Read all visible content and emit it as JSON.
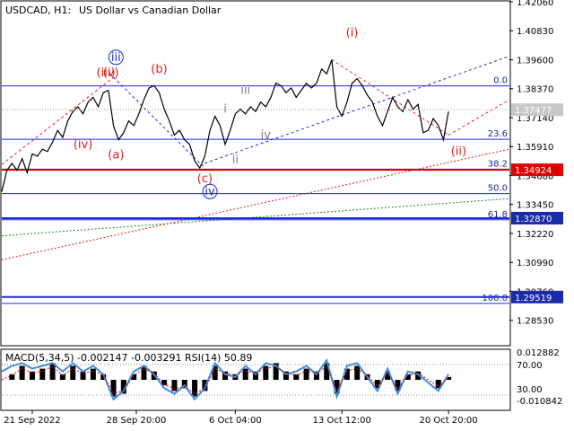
{
  "header": {
    "symbol": "USDCAD, H1:",
    "description": "US Dollar vs Canadian Dollar"
  },
  "macd_header": "MACD(5,34,5) -0.002147 -0.003291 RSI(14) 50.89",
  "colors": {
    "price_line": "#000000",
    "fib_line": "#1a2ad8",
    "key_level": "#e00000",
    "price_tag": "#1a2aa8",
    "wave_red": "#d8221b",
    "wave_gray": "#7d7d7d",
    "wave_blue": "#1a2ad8",
    "macd_hist": "#000000",
    "macd_signal": "#e00000",
    "rsi_line": "#3d8fe0",
    "trend_green": "#1a8a1a",
    "trend_red": "#d8221b",
    "trend_blue": "#1a2ad8"
  },
  "chart_data": {
    "type": "line",
    "ylim": [
      1.2749,
      1.4206
    ],
    "xlim": [
      0,
      100
    ],
    "y_ticks": [
      "1.42060",
      "1.40830",
      "1.39600",
      "1.38370",
      "1.37140",
      "1.35910",
      "1.34680",
      "1.33450",
      "1.32220",
      "1.30990",
      "1.29760",
      "1.28530"
    ],
    "x_ticks": [
      {
        "label": "21 Sep 2022",
        "x": 6
      },
      {
        "label": "28 Sep 20:00",
        "x": 26.5
      },
      {
        "label": "6 Oct 04:00",
        "x": 46
      },
      {
        "label": "13 Oct 12:00",
        "x": 67
      },
      {
        "label": "20 Oct 20:00",
        "x": 88
      }
    ],
    "fib_levels": [
      {
        "label": "0.0",
        "price": 1.3849
      },
      {
        "label": "23.6",
        "price": 1.3622
      },
      {
        "label": "38.2",
        "price": 1.3495
      },
      {
        "label": "50.0",
        "price": 1.3391
      },
      {
        "label": "61.8",
        "price": 1.328
      },
      {
        "label": "100.0",
        "price": 1.2925
      }
    ],
    "key_levels": [
      {
        "label": "1.34924",
        "price": 1.34924
      },
      {
        "label": "1.32870",
        "price": 1.3287
      },
      {
        "label": "1.29519",
        "price": 1.29519
      }
    ],
    "current_price": {
      "label": "1.37477",
      "price": 1.37477
    },
    "price_series": [
      [
        0,
        1.34
      ],
      [
        1,
        1.349
      ],
      [
        2,
        1.352
      ],
      [
        3,
        1.349
      ],
      [
        4,
        1.354
      ],
      [
        5,
        1.348
      ],
      [
        6,
        1.356
      ],
      [
        7,
        1.355
      ],
      [
        8,
        1.358
      ],
      [
        9,
        1.357
      ],
      [
        10,
        1.361
      ],
      [
        11,
        1.366
      ],
      [
        12,
        1.363
      ],
      [
        13,
        1.37
      ],
      [
        14,
        1.374
      ],
      [
        15,
        1.376
      ],
      [
        16,
        1.373
      ],
      [
        17,
        1.378
      ],
      [
        18,
        1.38
      ],
      [
        19,
        1.376
      ],
      [
        20,
        1.382
      ],
      [
        21,
        1.383
      ],
      [
        22,
        1.368
      ],
      [
        23,
        1.362
      ],
      [
        24,
        1.365
      ],
      [
        25,
        1.37
      ],
      [
        26,
        1.368
      ],
      [
        27,
        1.373
      ],
      [
        28,
        1.379
      ],
      [
        29,
        1.384
      ],
      [
        30,
        1.385
      ],
      [
        31,
        1.382
      ],
      [
        32,
        1.375
      ],
      [
        33,
        1.37
      ],
      [
        34,
        1.364
      ],
      [
        35,
        1.366
      ],
      [
        36,
        1.362
      ],
      [
        37,
        1.36
      ],
      [
        38,
        1.353
      ],
      [
        39,
        1.35
      ],
      [
        40,
        1.355
      ],
      [
        41,
        1.366
      ],
      [
        42,
        1.372
      ],
      [
        43,
        1.368
      ],
      [
        44,
        1.36
      ],
      [
        45,
        1.366
      ],
      [
        46,
        1.373
      ],
      [
        47,
        1.375
      ],
      [
        48,
        1.373
      ],
      [
        49,
        1.376
      ],
      [
        50,
        1.374
      ],
      [
        51,
        1.378
      ],
      [
        52,
        1.376
      ],
      [
        53,
        1.38
      ],
      [
        54,
        1.386
      ],
      [
        55,
        1.385
      ],
      [
        56,
        1.382
      ],
      [
        57,
        1.384
      ],
      [
        58,
        1.38
      ],
      [
        59,
        1.383
      ],
      [
        60,
        1.386
      ],
      [
        61,
        1.384
      ],
      [
        62,
        1.386
      ],
      [
        63,
        1.392
      ],
      [
        64,
        1.39
      ],
      [
        65,
        1.396
      ],
      [
        66,
        1.376
      ],
      [
        67,
        1.372
      ],
      [
        68,
        1.378
      ],
      [
        69,
        1.386
      ],
      [
        70,
        1.388
      ],
      [
        71,
        1.385
      ],
      [
        72,
        1.381
      ],
      [
        73,
        1.378
      ],
      [
        74,
        1.372
      ],
      [
        75,
        1.368
      ],
      [
        76,
        1.374
      ],
      [
        77,
        1.38
      ],
      [
        78,
        1.376
      ],
      [
        79,
        1.374
      ],
      [
        80,
        1.379
      ],
      [
        81,
        1.375
      ],
      [
        82,
        1.377
      ],
      [
        83,
        1.365
      ],
      [
        84,
        1.366
      ],
      [
        85,
        1.371
      ],
      [
        86,
        1.368
      ],
      [
        87,
        1.362
      ],
      [
        88,
        1.374
      ]
    ],
    "wave_labels": [
      {
        "text": "(iii)",
        "x": 20.5,
        "y": 1.389,
        "style": "red"
      },
      {
        "text": "(v)",
        "x": 21.5,
        "y": 1.389,
        "style": "red"
      },
      {
        "text": "iii",
        "x": 22.5,
        "y": 1.3955,
        "style": "blue-circle"
      },
      {
        "text": "(b)",
        "x": 31,
        "y": 1.3905,
        "style": "red"
      },
      {
        "text": "(iv)",
        "x": 16,
        "y": 1.3585,
        "style": "red"
      },
      {
        "text": "(a)",
        "x": 22.5,
        "y": 1.354,
        "style": "red"
      },
      {
        "text": "(c)",
        "x": 40,
        "y": 1.344,
        "style": "red"
      },
      {
        "text": "iv",
        "x": 41,
        "y": 1.3385,
        "style": "blue-circle"
      },
      {
        "text": "i",
        "x": 44,
        "y": 1.3735,
        "style": "gray"
      },
      {
        "text": "ii",
        "x": 46,
        "y": 1.352,
        "style": "gray"
      },
      {
        "text": "iii",
        "x": 48,
        "y": 1.3815,
        "style": "gray"
      },
      {
        "text": "iv",
        "x": 52,
        "y": 1.3625,
        "style": "gray"
      },
      {
        "text": "(i)",
        "x": 69,
        "y": 1.406,
        "style": "red"
      },
      {
        "text": "(ii)",
        "x": 90,
        "y": 1.3555,
        "style": "red"
      }
    ],
    "trend_lines": [
      {
        "color": "trend_green",
        "dash": "2,2",
        "from": [
          0,
          1.3212
        ],
        "to": [
          100,
          1.337
        ]
      },
      {
        "color": "trend_red",
        "dash": "2,2",
        "from": [
          0,
          1.311
        ],
        "to": [
          100,
          1.358
        ]
      },
      {
        "color": "trend_blue",
        "dash": "3,3",
        "from": [
          40,
          1.352
        ],
        "to": [
          100,
          1.3975
        ]
      },
      {
        "color": "trend_red",
        "dash": "3,3",
        "from": [
          0,
          1.3515
        ],
        "to": [
          22,
          1.3885
        ]
      },
      {
        "color": "trend_blue",
        "dash": "3,3",
        "from": [
          22,
          1.3885
        ],
        "to": [
          40,
          1.35
        ]
      },
      {
        "color": "trend_red",
        "dash": "3,3",
        "from": [
          65,
          1.396
        ],
        "to": [
          88,
          1.364
        ]
      },
      {
        "color": "trend_red",
        "dash": "3,3",
        "from": [
          88,
          1.364
        ],
        "to": [
          100,
          1.379
        ]
      }
    ],
    "macd_ticks": [
      "0.012882",
      "70.00",
      "30.00",
      "-0.010842"
    ],
    "macd_series": [
      [
        0,
        0.0
      ],
      [
        2,
        0.2
      ],
      [
        4,
        0.5
      ],
      [
        6,
        0.3
      ],
      [
        8,
        0.4
      ],
      [
        10,
        0.6
      ],
      [
        12,
        0.2
      ],
      [
        14,
        0.5
      ],
      [
        16,
        0.3
      ],
      [
        18,
        0.4
      ],
      [
        20,
        0.2
      ],
      [
        22,
        -0.6
      ],
      [
        24,
        -0.5
      ],
      [
        26,
        0.2
      ],
      [
        28,
        0.5
      ],
      [
        30,
        0.3
      ],
      [
        32,
        -0.2
      ],
      [
        34,
        -0.4
      ],
      [
        36,
        -0.3
      ],
      [
        38,
        -0.6
      ],
      [
        40,
        -0.4
      ],
      [
        42,
        0.5
      ],
      [
        44,
        0.3
      ],
      [
        46,
        0.2
      ],
      [
        48,
        0.4
      ],
      [
        50,
        0.3
      ],
      [
        52,
        0.5
      ],
      [
        54,
        0.6
      ],
      [
        56,
        0.3
      ],
      [
        58,
        0.2
      ],
      [
        60,
        0.4
      ],
      [
        62,
        0.3
      ],
      [
        64,
        0.6
      ],
      [
        66,
        -0.5
      ],
      [
        68,
        0.4
      ],
      [
        70,
        0.5
      ],
      [
        72,
        0.2
      ],
      [
        74,
        -0.3
      ],
      [
        76,
        0.3
      ],
      [
        78,
        -0.4
      ],
      [
        80,
        0.2
      ],
      [
        82,
        0.3
      ],
      [
        84,
        0.0
      ],
      [
        86,
        -0.3
      ],
      [
        88,
        0.1
      ]
    ],
    "rsi_series": [
      [
        0,
        0.3
      ],
      [
        2,
        0.5
      ],
      [
        4,
        0.6
      ],
      [
        6,
        0.4
      ],
      [
        8,
        0.5
      ],
      [
        10,
        0.6
      ],
      [
        12,
        0.3
      ],
      [
        14,
        0.6
      ],
      [
        16,
        0.3
      ],
      [
        18,
        0.5
      ],
      [
        20,
        0.2
      ],
      [
        22,
        -0.7
      ],
      [
        24,
        -0.4
      ],
      [
        26,
        0.3
      ],
      [
        28,
        0.5
      ],
      [
        30,
        0.2
      ],
      [
        32,
        -0.3
      ],
      [
        34,
        -0.5
      ],
      [
        36,
        -0.2
      ],
      [
        38,
        -0.7
      ],
      [
        40,
        -0.3
      ],
      [
        42,
        0.6
      ],
      [
        44,
        0.2
      ],
      [
        46,
        0.1
      ],
      [
        48,
        0.5
      ],
      [
        50,
        0.2
      ],
      [
        52,
        0.6
      ],
      [
        54,
        0.5
      ],
      [
        56,
        0.2
      ],
      [
        58,
        0.3
      ],
      [
        60,
        0.5
      ],
      [
        62,
        0.2
      ],
      [
        64,
        0.7
      ],
      [
        66,
        -0.6
      ],
      [
        68,
        0.5
      ],
      [
        70,
        0.6
      ],
      [
        72,
        0.1
      ],
      [
        74,
        -0.4
      ],
      [
        76,
        0.4
      ],
      [
        78,
        -0.5
      ],
      [
        80,
        0.3
      ],
      [
        82,
        0.2
      ],
      [
        84,
        -0.1
      ],
      [
        86,
        -0.4
      ],
      [
        88,
        0.2
      ]
    ]
  }
}
